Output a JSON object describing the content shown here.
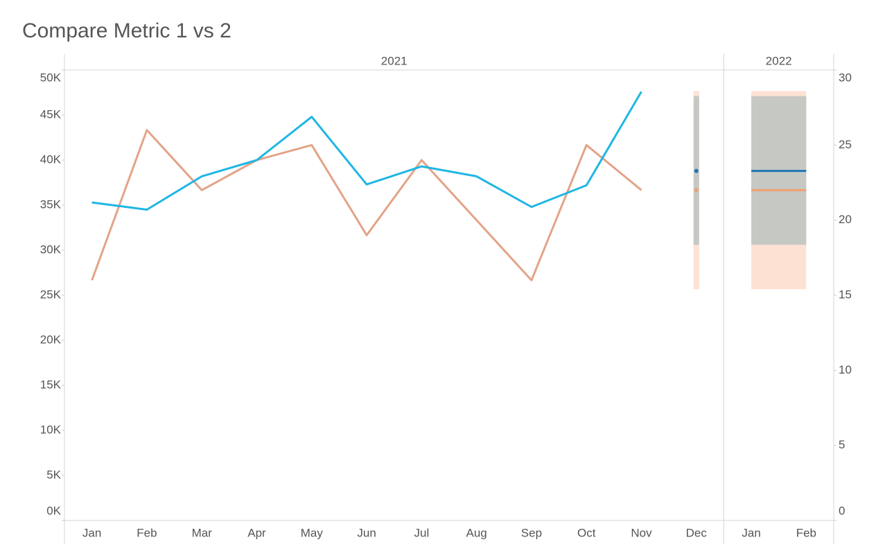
{
  "chart_data": {
    "type": "line",
    "title": "Compare Metric 1 vs 2",
    "panels": [
      {
        "label": "2021",
        "categories": [
          "Jan",
          "Feb",
          "Mar",
          "Apr",
          "May",
          "Jun",
          "Jul",
          "Aug",
          "Sep",
          "Oct",
          "Nov",
          "Dec"
        ]
      },
      {
        "label": "2022",
        "categories": [
          "Jan",
          "Feb"
        ]
      }
    ],
    "ylim": [
      0,
      50000
    ],
    "yticks": [
      {
        "value": 0,
        "label": "0K"
      },
      {
        "value": 5000,
        "label": "5K"
      },
      {
        "value": 10000,
        "label": "10K"
      },
      {
        "value": 15000,
        "label": "15K"
      },
      {
        "value": 20000,
        "label": "20K"
      },
      {
        "value": 25000,
        "label": "25K"
      },
      {
        "value": 30000,
        "label": "30K"
      },
      {
        "value": 35000,
        "label": "35K"
      },
      {
        "value": 40000,
        "label": "40K"
      },
      {
        "value": 45000,
        "label": "45K"
      },
      {
        "value": 50000,
        "label": "50K"
      }
    ],
    "y2lim": [
      0,
      30
    ],
    "y2ticks": [
      0,
      5,
      10,
      15,
      20,
      25,
      30
    ],
    "series": [
      {
        "color": "#1fb6e3",
        "axis": "y",
        "values": [
          35300,
          34500,
          38200,
          40000,
          44800,
          37300,
          39300,
          38200,
          34800,
          37200,
          47600,
          null,
          null,
          null
        ],
        "forecast_color": "#1f77b4",
        "forecast": [
          null,
          null,
          null,
          null,
          null,
          null,
          null,
          null,
          null,
          null,
          null,
          38800,
          38800,
          38800
        ],
        "band_color": "#c6c8c4",
        "lower": [
          null,
          null,
          null,
          null,
          null,
          null,
          null,
          null,
          null,
          null,
          null,
          30600,
          30600,
          30600
        ],
        "upper": [
          null,
          null,
          null,
          null,
          null,
          null,
          null,
          null,
          null,
          null,
          null,
          47100,
          47100,
          47100
        ]
      },
      {
        "color": "#e3a387",
        "axis": "y2",
        "values": [
          16,
          26,
          22,
          24,
          25,
          19,
          24,
          20,
          16,
          25,
          22,
          null,
          null,
          null
        ],
        "forecast_color": "#f0a070",
        "forecast": [
          null,
          null,
          null,
          null,
          null,
          null,
          null,
          null,
          null,
          null,
          null,
          22,
          22,
          22
        ],
        "band_color": "#fde1d3",
        "lower": [
          null,
          null,
          null,
          null,
          null,
          null,
          null,
          null,
          null,
          null,
          null,
          15.4,
          15.4,
          15.4
        ],
        "upper": [
          null,
          null,
          null,
          null,
          null,
          null,
          null,
          null,
          null,
          null,
          null,
          28.6,
          28.6,
          28.6
        ]
      }
    ]
  }
}
